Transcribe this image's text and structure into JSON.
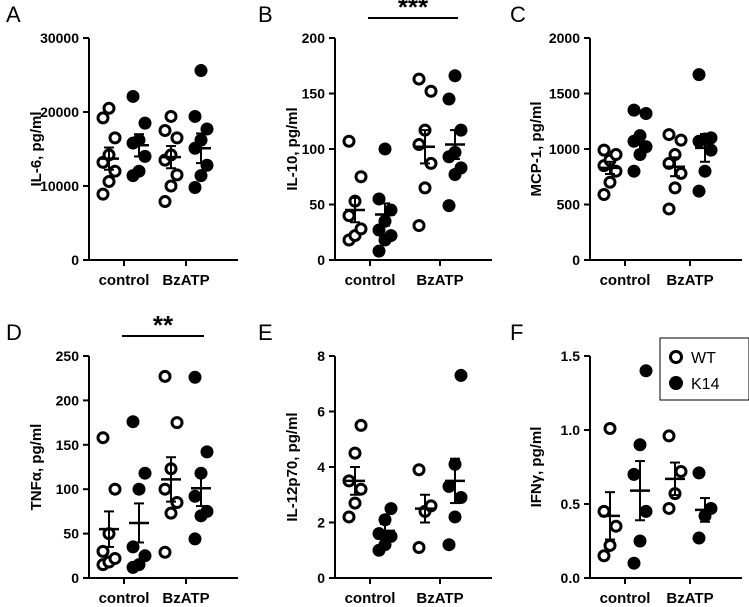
{
  "legend": [
    {
      "label": "WT",
      "marker": "open-circle"
    },
    {
      "label": "K14",
      "marker": "filled-circle"
    }
  ],
  "colors": {
    "ink": "#000000",
    "background": "#ffffff"
  },
  "chart_data": [
    {
      "type": "scatter",
      "panel": "A",
      "ylabel": "IL-6, pg/ml",
      "ylim": [
        0,
        30000
      ],
      "yticks": [
        0,
        10000,
        20000,
        30000
      ],
      "categories": [
        "control",
        "BzATP"
      ],
      "significance": null,
      "series": [
        {
          "name": "WT",
          "groups": [
            {
              "values": [
                8900,
                10600,
                12000,
                13200,
                14200,
                16500,
                19200,
                20500
              ],
              "mean": 13700,
              "sem": 1500
            },
            {
              "values": [
                7900,
                10000,
                11500,
                13500,
                14200,
                16500,
                17500,
                19400
              ],
              "mean": 13900,
              "sem": 1500
            }
          ]
        },
        {
          "name": "K14",
          "groups": [
            {
              "values": [
                11400,
                12000,
                14000,
                15800,
                16200,
                18500,
                22100
              ],
              "mean": 15500,
              "sem": 1500
            },
            {
              "values": [
                9800,
                11400,
                12800,
                15100,
                16200,
                17700,
                19400,
                25600
              ],
              "mean": 15100,
              "sem": 2000
            }
          ]
        }
      ]
    },
    {
      "type": "scatter",
      "panel": "B",
      "ylabel": "IL-10, pg/ml",
      "ylim": [
        0,
        200
      ],
      "yticks": [
        0,
        50,
        100,
        150,
        200
      ],
      "categories": [
        "control",
        "BzATP"
      ],
      "significance": {
        "label": "***",
        "between": [
          "control",
          "BzATP"
        ]
      },
      "series": [
        {
          "name": "WT",
          "groups": [
            {
              "values": [
                18,
                22,
                28,
                40,
                53,
                75,
                107
              ],
              "mean": 45,
              "sem": 11
            },
            {
              "values": [
                31,
                65,
                87,
                104,
                117,
                152,
                163
              ],
              "mean": 102,
              "sem": 15
            }
          ]
        },
        {
          "name": "K14",
          "groups": [
            {
              "values": [
                8,
                18,
                22,
                27,
                35,
                45,
                55,
                100
              ],
              "mean": 41,
              "sem": 10
            },
            {
              "values": [
                49,
                77,
                83,
                93,
                97,
                117,
                145,
                166
              ],
              "mean": 104,
              "sem": 13
            }
          ]
        }
      ]
    },
    {
      "type": "scatter",
      "panel": "C",
      "ylabel": "MCP-1, pg/ml",
      "ylim": [
        0,
        2000
      ],
      "yticks": [
        0,
        500,
        1000,
        1500,
        2000
      ],
      "categories": [
        "control",
        "BzATP"
      ],
      "significance": null,
      "series": [
        {
          "name": "WT",
          "groups": [
            {
              "values": [
                590,
                700,
                800,
                850,
                900,
                950,
                990
              ],
              "mean": 830,
              "sem": 55
            },
            {
              "values": [
                460,
                650,
                780,
                870,
                950,
                1080,
                1130
              ],
              "mean": 840,
              "sem": 85
            }
          ]
        },
        {
          "name": "K14",
          "groups": [
            {
              "values": [
                800,
                950,
                1020,
                1070,
                1120,
                1320,
                1350
              ],
              "mean": 1060,
              "sem": 75
            },
            {
              "values": [
                620,
                800,
                990,
                1070,
                1090,
                1100,
                1670
              ],
              "mean": 1010,
              "sem": 125
            }
          ]
        }
      ]
    },
    {
      "type": "scatter",
      "panel": "D",
      "ylabel": "TNFα, pg/ml",
      "ylim": [
        0,
        250
      ],
      "yticks": [
        0,
        50,
        100,
        150,
        200,
        250
      ],
      "categories": [
        "control",
        "BzATP"
      ],
      "significance": {
        "label": "**",
        "between": [
          "control",
          "BzATP"
        ]
      },
      "series": [
        {
          "name": "WT",
          "groups": [
            {
              "values": [
                15,
                18,
                22,
                30,
                50,
                100,
                158
              ],
              "mean": 55,
              "sem": 20
            },
            {
              "values": [
                29,
                73,
                85,
                100,
                123,
                175,
                227
              ],
              "mean": 111,
              "sem": 25
            }
          ]
        },
        {
          "name": "K14",
          "groups": [
            {
              "values": [
                12,
                15,
                25,
                35,
                100,
                118,
                176
              ],
              "mean": 62,
              "sem": 22
            },
            {
              "values": [
                44,
                70,
                75,
                92,
                118,
                142,
                226
              ],
              "mean": 101,
              "sem": 20
            }
          ]
        }
      ]
    },
    {
      "type": "scatter",
      "panel": "E",
      "ylabel": "IL-12p70, pg/ml",
      "ylim": [
        0,
        8
      ],
      "yticks": [
        0,
        2,
        4,
        6,
        8
      ],
      "categories": [
        "control",
        "BzATP"
      ],
      "significance": null,
      "series": [
        {
          "name": "WT",
          "groups": [
            {
              "values": [
                2.2,
                2.7,
                3.2,
                3.5,
                4.5,
                5.5
              ],
              "mean": 3.5,
              "sem": 0.5
            },
            {
              "values": [
                1.1,
                2.4,
                2.6,
                3.9
              ],
              "mean": 2.5,
              "sem": 0.5
            }
          ]
        },
        {
          "name": "K14",
          "groups": [
            {
              "values": [
                1.0,
                1.2,
                1.5,
                1.6,
                2.1,
                2.5
              ],
              "mean": 1.7,
              "sem": 0.25
            },
            {
              "values": [
                1.2,
                2.2,
                2.9,
                3.3,
                4.1,
                7.3
              ],
              "mean": 3.5,
              "sem": 0.8
            }
          ]
        }
      ]
    },
    {
      "type": "scatter",
      "panel": "F",
      "ylabel": "IFNγ, pg/ml",
      "ylim": [
        0,
        1.5
      ],
      "yticks": [
        0.0,
        0.5,
        1.0,
        1.5
      ],
      "ytick_labels": [
        "0.0",
        "0.5",
        "1.0",
        "1.5"
      ],
      "categories": [
        "control",
        "BzATP"
      ],
      "significance": null,
      "series": [
        {
          "name": "WT",
          "groups": [
            {
              "values": [
                0.15,
                0.22,
                0.35,
                0.45,
                1.01
              ],
              "mean": 0.42,
              "sem": 0.16
            },
            {
              "values": [
                0.47,
                0.57,
                0.72,
                0.96
              ],
              "mean": 0.67,
              "sem": 0.11
            }
          ]
        },
        {
          "name": "K14",
          "groups": [
            {
              "values": [
                0.1,
                0.25,
                0.45,
                0.7,
                0.9,
                1.4
              ],
              "mean": 0.59,
              "sem": 0.2
            },
            {
              "values": [
                0.27,
                0.42,
                0.47,
                0.71
              ],
              "mean": 0.46,
              "sem": 0.08
            }
          ]
        }
      ]
    }
  ]
}
